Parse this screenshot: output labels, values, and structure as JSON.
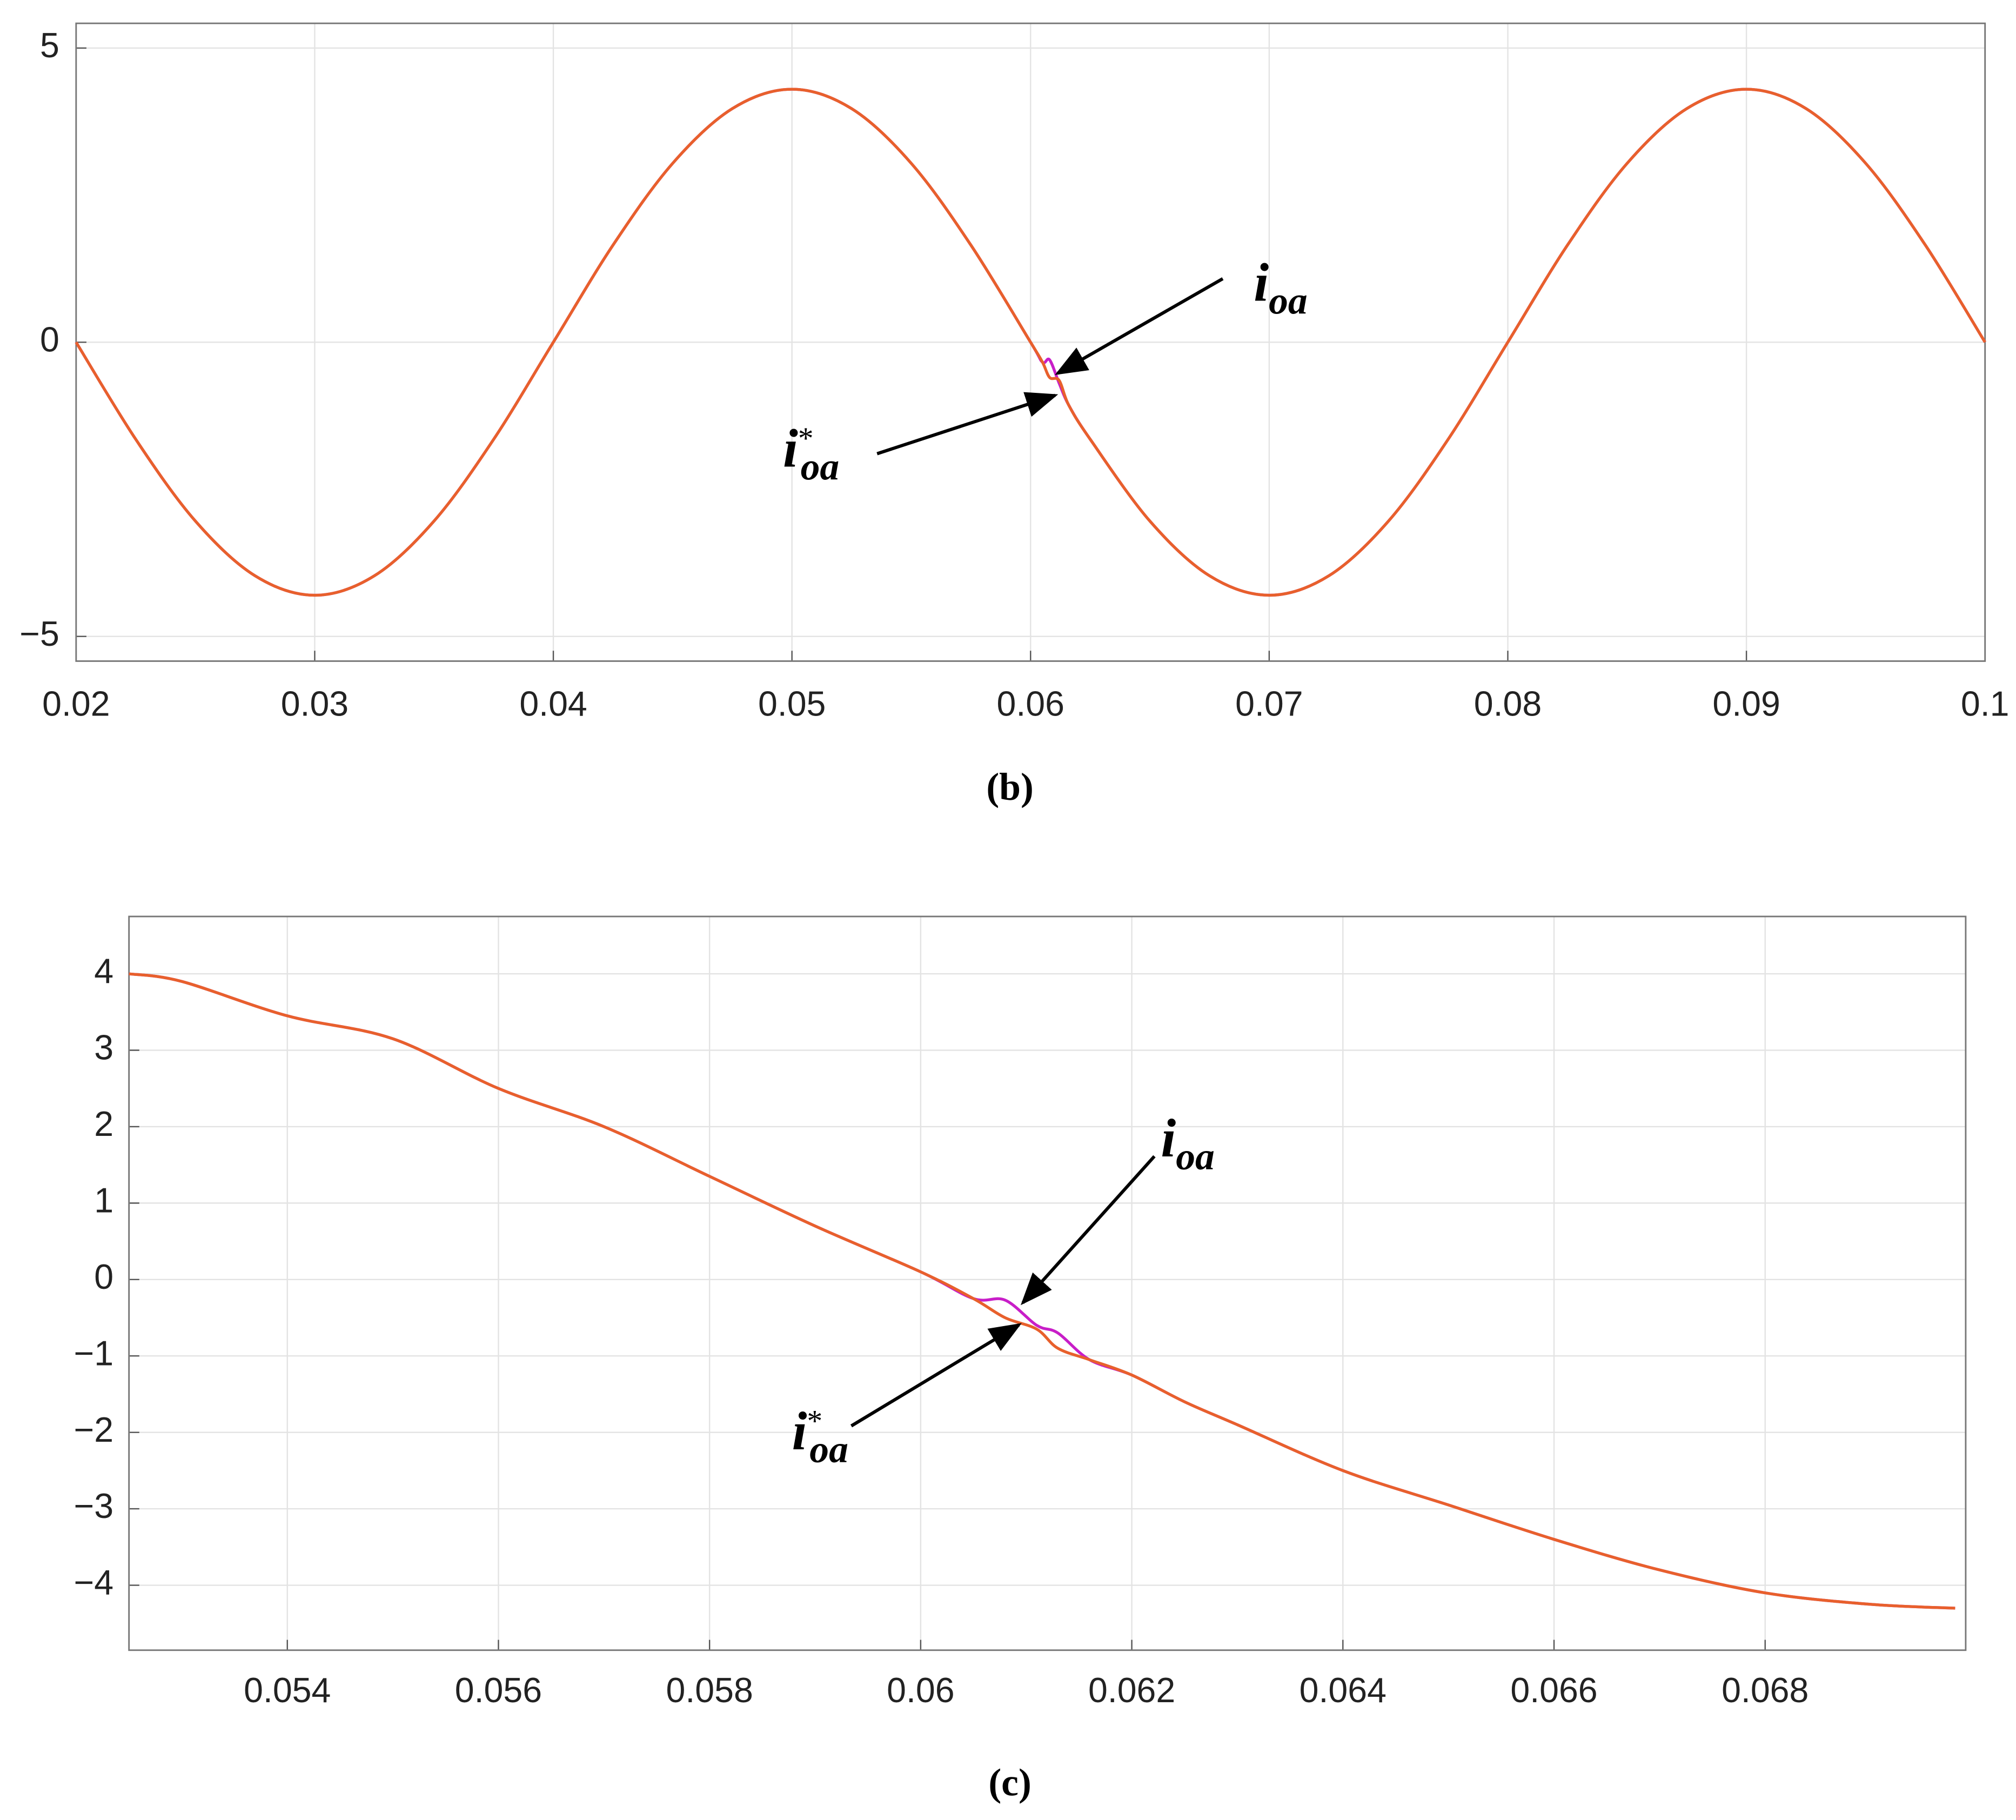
{
  "chart_data": [
    {
      "type": "line",
      "caption": "(b)",
      "x": [
        0.02,
        0.0225,
        0.025,
        0.0275,
        0.03,
        0.0325,
        0.035,
        0.0375,
        0.04,
        0.0425,
        0.045,
        0.0475,
        0.05,
        0.0525,
        0.055,
        0.0575,
        0.06,
        0.0605,
        0.0608,
        0.0612,
        0.0616,
        0.0625,
        0.065,
        0.0675,
        0.07,
        0.0725,
        0.075,
        0.0775,
        0.08,
        0.0825,
        0.085,
        0.0875,
        0.09,
        0.0925,
        0.095,
        0.0975,
        0.1
      ],
      "series": [
        {
          "color": "#c81ec8",
          "values": [
            0,
            -1.65,
            -3.04,
            -3.97,
            -4.3,
            -3.97,
            -3.04,
            -1.65,
            0,
            1.65,
            3.04,
            3.97,
            4.3,
            3.97,
            3.04,
            1.65,
            0,
            -0.34,
            -0.3,
            -0.7,
            -1.07,
            -1.65,
            -3.04,
            -3.97,
            -4.3,
            -3.97,
            -3.04,
            -1.65,
            0,
            1.65,
            3.04,
            3.97,
            4.3,
            3.97,
            3.04,
            1.65,
            0
          ]
        },
        {
          "color": "#e8602c",
          "values": [
            0,
            -1.65,
            -3.04,
            -3.97,
            -4.3,
            -3.97,
            -3.04,
            -1.65,
            0,
            1.65,
            3.04,
            3.97,
            4.3,
            3.97,
            3.04,
            1.65,
            0,
            -0.34,
            -0.6,
            -0.65,
            -1.07,
            -1.65,
            -3.04,
            -3.97,
            -4.3,
            -3.97,
            -3.04,
            -1.65,
            0,
            1.65,
            3.04,
            3.97,
            4.3,
            3.97,
            3.04,
            1.65,
            0
          ]
        }
      ],
      "xlim": [
        0.02,
        0.1
      ],
      "ylim": [
        -5.42,
        5.42
      ],
      "xticks": [
        0.02,
        0.03,
        0.04,
        0.05,
        0.06,
        0.07,
        0.08,
        0.09,
        0.1
      ],
      "yticks": [
        5,
        0,
        {
          "value": -5,
          "label": "−5"
        }
      ],
      "grid": true,
      "annotations": [
        {
          "text": "i",
          "subscript": "oa"
        },
        {
          "text": "i",
          "superscript": "*",
          "subscript": "oa"
        }
      ]
    },
    {
      "type": "line",
      "caption": "(c)",
      "x": [
        0.0525,
        0.053,
        0.054,
        0.055,
        0.056,
        0.057,
        0.058,
        0.059,
        0.06,
        0.0605,
        0.0608,
        0.0611,
        0.0613,
        0.0616,
        0.062,
        0.0625,
        0.063,
        0.064,
        0.065,
        0.066,
        0.067,
        0.068,
        0.069,
        0.0698
      ],
      "series": [
        {
          "color": "#c81ec8",
          "values": [
            4.0,
            3.9,
            3.45,
            3.15,
            2.5,
            2.0,
            1.35,
            0.7,
            0.1,
            -0.25,
            -0.27,
            -0.6,
            -0.7,
            -1.05,
            -1.25,
            -1.6,
            -1.9,
            -2.5,
            -2.95,
            -3.4,
            -3.8,
            -4.1,
            -4.25,
            -4.3
          ]
        },
        {
          "color": "#e8602c",
          "values": [
            4.0,
            3.9,
            3.45,
            3.15,
            2.5,
            2.0,
            1.35,
            0.7,
            0.1,
            -0.25,
            -0.5,
            -0.65,
            -0.9,
            -1.05,
            -1.25,
            -1.6,
            -1.9,
            -2.5,
            -2.95,
            -3.4,
            -3.8,
            -4.1,
            -4.25,
            -4.3
          ]
        }
      ],
      "xlim": [
        0.0525,
        0.0699
      ],
      "ylim": [
        -4.85,
        4.75
      ],
      "xticks": [
        0.054,
        0.056,
        0.058,
        0.06,
        0.062,
        0.064,
        0.066,
        0.068
      ],
      "yticks": [
        4,
        3,
        2,
        1,
        0,
        {
          "value": -1,
          "label": "−1"
        },
        {
          "value": -2,
          "label": "−2"
        },
        {
          "value": -3,
          "label": "−3"
        },
        {
          "value": -4,
          "label": "−4"
        }
      ],
      "grid": true,
      "annotations": [
        {
          "text": "i",
          "subscript": "oa"
        },
        {
          "text": "i",
          "superscript": "*",
          "subscript": "oa"
        }
      ]
    }
  ]
}
